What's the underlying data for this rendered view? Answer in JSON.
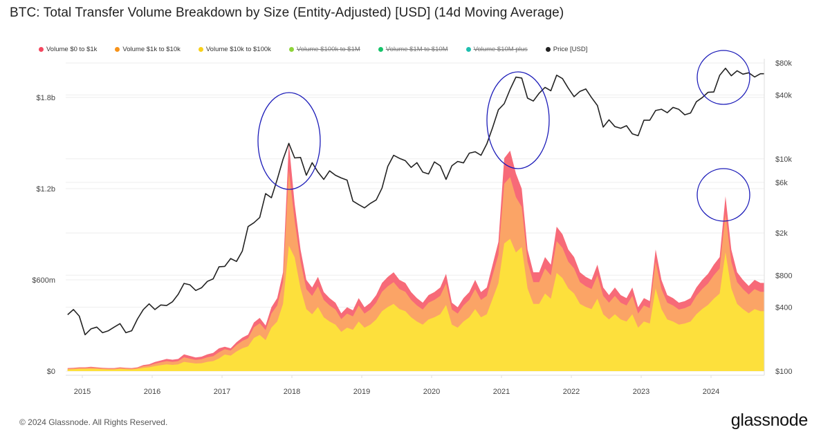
{
  "title": "BTC: Total Transfer Volume Breakdown by Size (Entity-Adjusted) [USD] (14d Moving Average)",
  "footer": "© 2024 Glassnode. All Rights Reserved.",
  "logo": "glassnode",
  "legend": [
    {
      "label": "Volume $0 to $1k",
      "color": "#f4475f",
      "enabled": true
    },
    {
      "label": "Volume $1k to $10k",
      "color": "#f7931a",
      "enabled": true
    },
    {
      "label": "Volume $10k to $100k",
      "color": "#f9d11a",
      "enabled": true
    },
    {
      "label": "Volume $100k to $1M",
      "color": "#8ed43a",
      "enabled": false
    },
    {
      "label": "Volume $1M to $10M",
      "color": "#16c46a",
      "enabled": false
    },
    {
      "label": "Volume $10M plus",
      "color": "#1fbfb0",
      "enabled": false
    },
    {
      "label": "Price [USD]",
      "color": "#222222",
      "enabled": true
    }
  ],
  "chart_data": {
    "type": "area",
    "stacked": true,
    "title": "BTC: Total Transfer Volume Breakdown by Size (Entity-Adjusted) [USD] (14d Moving Average)",
    "x_ticks": [
      "2015",
      "2016",
      "2017",
      "2018",
      "2019",
      "2020",
      "2021",
      "2022",
      "2023",
      "2024"
    ],
    "y_left": {
      "ticks": [
        "$0",
        "$600m",
        "$1.2b",
        "$1.8b"
      ],
      "tick_values_musd": [
        0,
        600,
        1200,
        1800
      ],
      "unit": "USD millions",
      "range": [
        0,
        2050
      ]
    },
    "y_right": {
      "scale": "log",
      "ticks": [
        "$100",
        "$400",
        "$800",
        "$2k",
        "$6k",
        "$10k",
        "$40k",
        "$80k"
      ],
      "tick_values": [
        100,
        400,
        800,
        2000,
        6000,
        10000,
        40000,
        80000
      ],
      "range": [
        100,
        80000
      ]
    },
    "grid": true,
    "legend_position": "top",
    "x": [
      "2014-10",
      "2014-11",
      "2014-12",
      "2015-01",
      "2015-02",
      "2015-03",
      "2015-04",
      "2015-05",
      "2015-06",
      "2015-07",
      "2015-08",
      "2015-09",
      "2015-10",
      "2015-11",
      "2015-12",
      "2016-01",
      "2016-02",
      "2016-03",
      "2016-04",
      "2016-05",
      "2016-06",
      "2016-07",
      "2016-08",
      "2016-09",
      "2016-10",
      "2016-11",
      "2016-12",
      "2017-01",
      "2017-02",
      "2017-03",
      "2017-04",
      "2017-05",
      "2017-06",
      "2017-07",
      "2017-08",
      "2017-09",
      "2017-10",
      "2017-11",
      "2017-12",
      "2018-01",
      "2018-02",
      "2018-03",
      "2018-04",
      "2018-05",
      "2018-06",
      "2018-07",
      "2018-08",
      "2018-09",
      "2018-10",
      "2018-11",
      "2018-12",
      "2019-01",
      "2019-02",
      "2019-03",
      "2019-04",
      "2019-05",
      "2019-06",
      "2019-07",
      "2019-08",
      "2019-09",
      "2019-10",
      "2019-11",
      "2019-12",
      "2020-01",
      "2020-02",
      "2020-03",
      "2020-04",
      "2020-05",
      "2020-06",
      "2020-07",
      "2020-08",
      "2020-09",
      "2020-10",
      "2020-11",
      "2020-12",
      "2021-01",
      "2021-02",
      "2021-03",
      "2021-04",
      "2021-05",
      "2021-06",
      "2021-07",
      "2021-08",
      "2021-09",
      "2021-10",
      "2021-11",
      "2021-12",
      "2022-01",
      "2022-02",
      "2022-03",
      "2022-04",
      "2022-05",
      "2022-06",
      "2022-07",
      "2022-08",
      "2022-09",
      "2022-10",
      "2022-11",
      "2022-12",
      "2023-01",
      "2023-02",
      "2023-03",
      "2023-04",
      "2023-05",
      "2023-06",
      "2023-07",
      "2023-08",
      "2023-09",
      "2023-10",
      "2023-11",
      "2023-12",
      "2024-01",
      "2024-02",
      "2024-03",
      "2024-04",
      "2024-05",
      "2024-06",
      "2024-07",
      "2024-08",
      "2024-09"
    ],
    "series": [
      {
        "name": "Volume $10k to $100k",
        "axis": "left",
        "color": "#fde03c",
        "values": [
          11,
          12,
          14,
          14,
          15,
          14,
          12,
          11,
          11,
          14,
          12,
          11,
          14,
          22,
          25,
          33,
          39,
          44,
          41,
          44,
          61,
          55,
          50,
          52,
          61,
          66,
          83,
          109,
          102,
          129,
          150,
          163,
          218,
          238,
          204,
          286,
          326,
          442,
          825,
          748,
          544,
          408,
          374,
          422,
          354,
          326,
          306,
          258,
          286,
          272,
          326,
          286,
          306,
          340,
          394,
          422,
          442,
          408,
          394,
          354,
          326,
          306,
          340,
          354,
          374,
          435,
          306,
          286,
          326,
          354,
          408,
          354,
          374,
          476,
          578,
          840,
          870,
          780,
          816,
          544,
          442,
          442,
          510,
          476,
          646,
          612,
          544,
          510,
          442,
          422,
          408,
          476,
          374,
          340,
          374,
          340,
          326,
          374,
          286,
          326,
          313,
          544,
          408,
          340,
          326,
          306,
          313,
          326,
          374,
          408,
          435,
          476,
          510,
          782,
          544,
          442,
          408,
          381,
          408,
          394
        ]
      },
      {
        "name": "Volume $1k to $10k",
        "axis": "left",
        "color": "#fba466",
        "values": [
          5,
          6,
          7,
          7,
          8,
          7,
          6,
          5,
          5,
          7,
          6,
          5,
          7,
          11,
          12,
          16,
          19,
          22,
          20,
          22,
          30,
          27,
          24,
          26,
          30,
          32,
          41,
          35,
          33,
          42,
          48,
          53,
          70,
          77,
          66,
          92,
          106,
          143,
          495,
          242,
          176,
          132,
          121,
          136,
          114,
          106,
          99,
          84,
          92,
          88,
          106,
          92,
          99,
          110,
          128,
          136,
          143,
          132,
          128,
          114,
          106,
          99,
          110,
          114,
          121,
          141,
          99,
          92,
          106,
          114,
          132,
          114,
          121,
          154,
          187,
          392,
          406,
          364,
          264,
          176,
          143,
          143,
          165,
          154,
          209,
          198,
          176,
          165,
          143,
          136,
          132,
          154,
          121,
          110,
          121,
          110,
          106,
          121,
          92,
          106,
          101,
          176,
          132,
          110,
          106,
          99,
          101,
          106,
          121,
          132,
          141,
          154,
          165,
          253,
          176,
          143,
          132,
          123,
          132,
          128
        ]
      },
      {
        "name": "Volume $0 to $1k",
        "axis": "left",
        "color": "#f76a78",
        "values": [
          4,
          4,
          4,
          4,
          5,
          4,
          4,
          4,
          4,
          4,
          4,
          4,
          4,
          7,
          8,
          11,
          12,
          14,
          14,
          14,
          19,
          18,
          16,
          17,
          19,
          22,
          26,
          16,
          15,
          19,
          22,
          24,
          32,
          35,
          30,
          42,
          48,
          65,
          180,
          110,
          80,
          60,
          55,
          62,
          52,
          48,
          45,
          38,
          42,
          40,
          48,
          42,
          45,
          50,
          58,
          62,
          65,
          60,
          58,
          52,
          48,
          45,
          50,
          52,
          55,
          64,
          45,
          42,
          48,
          52,
          60,
          52,
          55,
          70,
          85,
          168,
          174,
          156,
          120,
          80,
          65,
          65,
          75,
          70,
          95,
          90,
          80,
          75,
          65,
          62,
          60,
          70,
          55,
          50,
          55,
          50,
          48,
          55,
          42,
          48,
          46,
          80,
          60,
          50,
          48,
          45,
          46,
          48,
          55,
          60,
          64,
          70,
          75,
          115,
          80,
          65,
          60,
          56,
          60,
          58
        ]
      },
      {
        "name": "Price [USD]",
        "axis": "right",
        "type": "line",
        "color": "#222222",
        "values": [
          340,
          380,
          330,
          220,
          250,
          260,
          230,
          240,
          260,
          280,
          230,
          240,
          310,
          380,
          430,
          380,
          420,
          415,
          450,
          530,
          670,
          650,
          575,
          610,
          700,
          740,
          960,
          970,
          1150,
          1080,
          1350,
          2300,
          2500,
          2800,
          4700,
          4300,
          6400,
          9900,
          14000,
          10200,
          10300,
          7000,
          9200,
          7500,
          6400,
          7700,
          7000,
          6600,
          6300,
          4000,
          3700,
          3450,
          3800,
          4100,
          5300,
          8500,
          10800,
          10100,
          9600,
          8300,
          9200,
          7500,
          7200,
          9350,
          8600,
          6400,
          8600,
          9450,
          9150,
          11300,
          11650,
          10800,
          13800,
          19700,
          29000,
          33100,
          45100,
          58800,
          57700,
          37300,
          35000,
          41500,
          47100,
          43800,
          61300,
          57000,
          46300,
          38500,
          43200,
          45500,
          37700,
          31800,
          19900,
          23300,
          20100,
          19400,
          20500,
          17200,
          16500,
          23100,
          23100,
          28500,
          29300,
          27200,
          30500,
          29200,
          26000,
          27000,
          34500,
          37700,
          42300,
          42600,
          61200,
          71300,
          60600,
          67500,
          62700,
          64600,
          59000,
          63300
        ]
      }
    ],
    "annotation_color": "#1a1ab8"
  }
}
